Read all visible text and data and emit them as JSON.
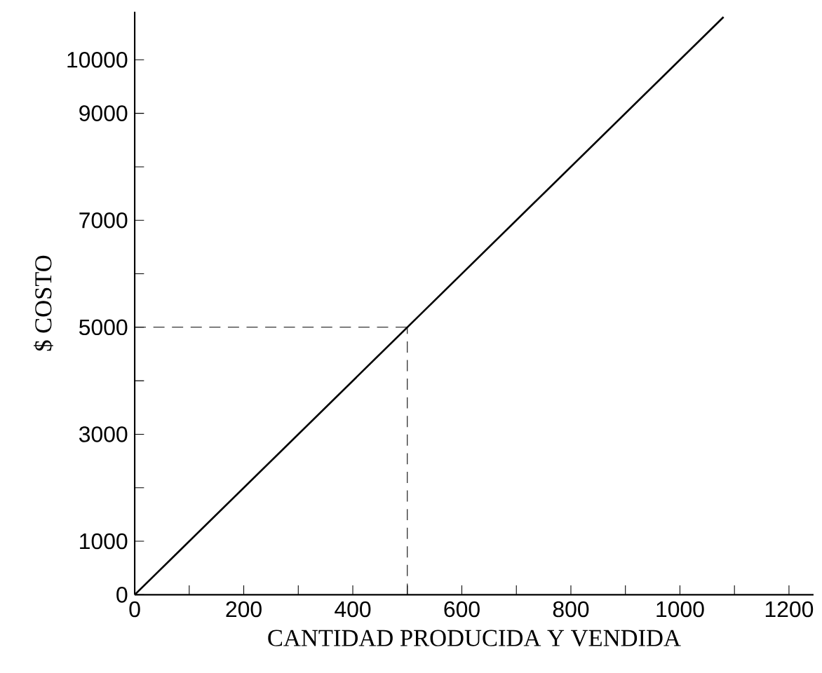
{
  "chart_data": {
    "type": "line",
    "xlabel": "CANTIDAD PRODUCIDA Y VENDIDA",
    "ylabel": "$ COSTO",
    "series": [
      {
        "color": "#000000",
        "x": [
          0,
          500,
          1080
        ],
        "values": [
          0,
          5000,
          10800
        ]
      }
    ],
    "xlim": [
      0,
      1245
    ],
    "ylim": [
      0,
      10900
    ],
    "xticks": [
      0,
      {
        "value": 100,
        "label": null
      },
      200,
      {
        "value": 300,
        "label": null
      },
      400,
      {
        "value": 500,
        "label": null
      },
      600,
      {
        "value": 700,
        "label": null
      },
      800,
      {
        "value": 900,
        "label": null
      },
      1000,
      {
        "value": 1100,
        "label": null
      },
      1200
    ],
    "yticks": [
      0,
      1000,
      {
        "value": 2000,
        "label": null
      },
      3000,
      {
        "value": 4000,
        "label": null
      },
      5000,
      {
        "value": 6000,
        "label": null
      },
      7000,
      {
        "value": 8000,
        "label": null
      },
      9000,
      10000
    ],
    "ref_lines": [
      {
        "axis": "x",
        "value": 500,
        "line_style": "dashed"
      },
      {
        "axis": "y",
        "value": 5000,
        "line_style": "dashed"
      }
    ],
    "grid": false,
    "marker": "none",
    "line_style": "solid"
  }
}
